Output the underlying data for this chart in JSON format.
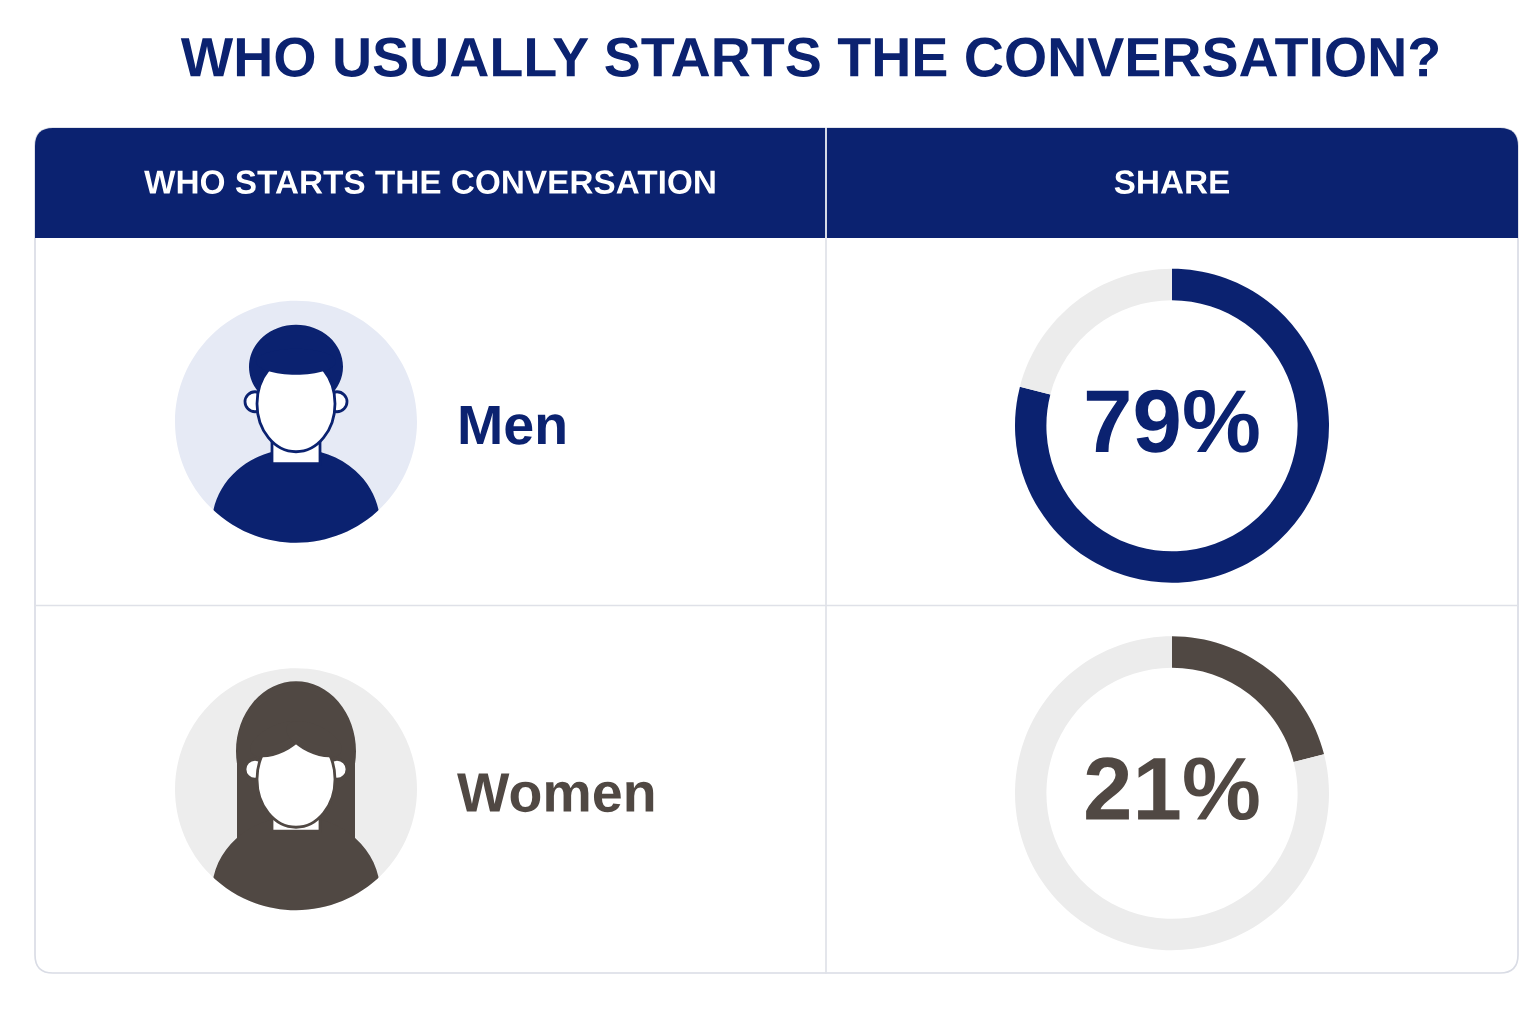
{
  "chart_data": [
    {
      "type": "other",
      "title": "WHO USUALLY STARTS THE CONVERSATION?",
      "annotations": [
        "WHO STARTS THE CONVERSATION",
        "SHARE"
      ]
    },
    {
      "type": "donut",
      "categories": [
        "Men",
        null
      ],
      "values": [
        79,
        21
      ],
      "colors": [
        "#0b2270",
        "#ececec"
      ],
      "value_labels": [
        "79%",
        null
      ]
    },
    {
      "type": "donut",
      "categories": [
        "Women",
        null
      ],
      "values": [
        21,
        79
      ],
      "colors": [
        "#504843",
        "#ececec"
      ],
      "value_labels": [
        "21%",
        null
      ]
    }
  ]
}
